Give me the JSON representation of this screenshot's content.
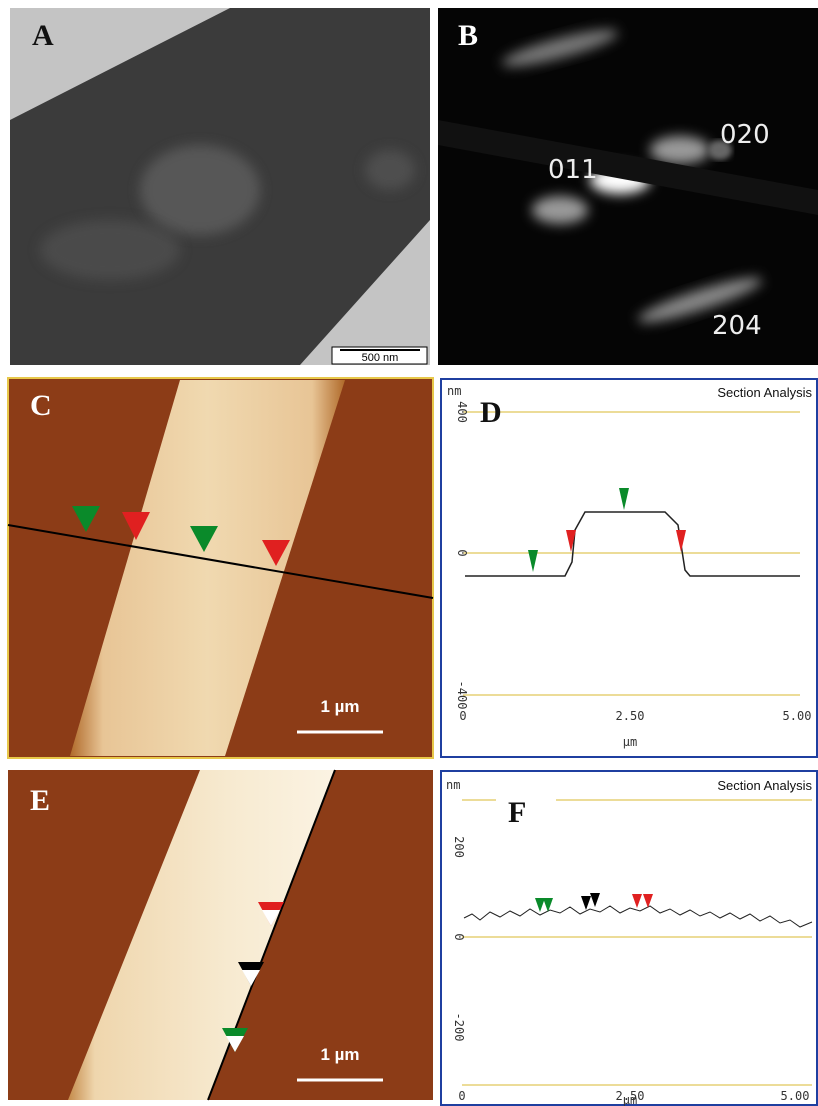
{
  "panels": {
    "a": {
      "label": "A",
      "scale_bar": "500 nm"
    },
    "b": {
      "label": "B",
      "spots": [
        "011",
        "020",
        "204"
      ]
    },
    "c": {
      "label": "C",
      "scale_bar": "1 µm"
    },
    "d": {
      "label": "D",
      "title": "Section Analysis",
      "y_unit": "nm",
      "y_ticks": [
        "400",
        "0",
        "-400"
      ],
      "x_ticks": [
        "0",
        "2.50",
        "5.00"
      ],
      "x_unit": "µm"
    },
    "e": {
      "label": "E",
      "scale_bar": "1 µm"
    },
    "f": {
      "label": "F",
      "title": "Section Analysis",
      "y_unit": "nm",
      "y_ticks": [
        "200",
        "0",
        "-200"
      ],
      "x_ticks": [
        "0",
        "2.50",
        "5.00"
      ],
      "x_unit": "µm"
    }
  }
}
